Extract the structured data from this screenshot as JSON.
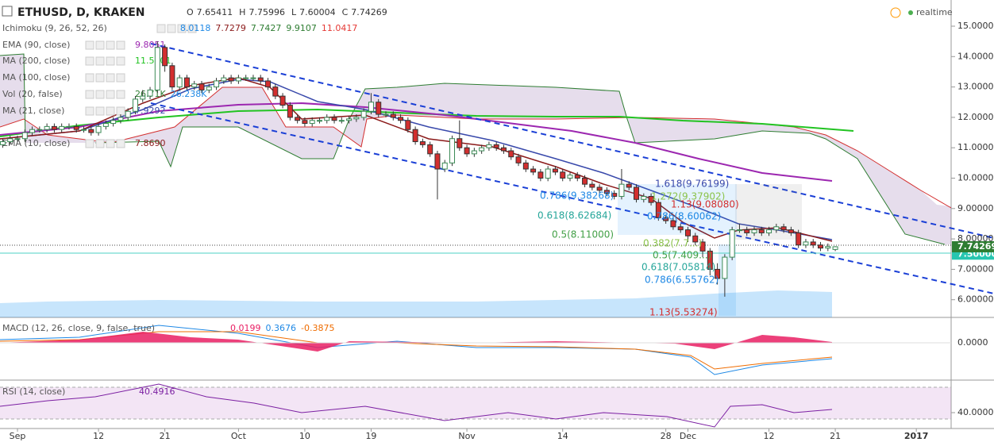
{
  "header": {
    "symbol": "ETHUSD, D, KRAKEN",
    "ohlc": [
      {
        "key": "O",
        "value": "7.65411"
      },
      {
        "key": "H",
        "value": "7.75996"
      },
      {
        "key": "L",
        "value": "7.60004"
      },
      {
        "key": "C",
        "value": "7.74269"
      }
    ],
    "status": "realtime"
  },
  "indicators": [
    {
      "name": "Ichimoku (9, 26, 52, 26)",
      "values": [
        {
          "text": "8.0118",
          "color": "#1e88e5"
        },
        {
          "text": "7.7279",
          "color": "#8b1a1a"
        },
        {
          "text": "7.7427",
          "color": "#2e7d32"
        },
        {
          "text": "9.9107",
          "color": "#2e7d32"
        },
        {
          "text": "11.0417",
          "color": "#e53935"
        }
      ]
    },
    {
      "name": "EMA (90, close)",
      "values": [
        {
          "text": "9.8051",
          "color": "#9c27b0"
        }
      ]
    },
    {
      "name": "MA (200, close)",
      "values": [
        {
          "text": "11.5401",
          "color": "#22c322"
        }
      ]
    },
    {
      "name": "MA (100, close)",
      "values": []
    },
    {
      "name": "Vol (20, false)",
      "values": [
        {
          "text": "26.71K",
          "color": "#2e7d32"
        },
        {
          "text": "26.238K",
          "color": "#1e88e5"
        }
      ]
    },
    {
      "name": "MA (21, close)",
      "values": [
        {
          "text": "7.9292",
          "color": "#3949ab"
        }
      ]
    },
    {
      "name": "EMA (10, close)",
      "values": [
        {
          "text": "7.8690",
          "color": "#8b1a1a"
        }
      ]
    }
  ],
  "candles": {
    "up_color": "#3a8a55",
    "down_color": "#d32f2f",
    "open": [
      11.1,
      11.2,
      11.3,
      11.3,
      11.5,
      11.6,
      11.6,
      11.7,
      11.6,
      11.7,
      11.7,
      11.6,
      11.6,
      11.5,
      11.7,
      11.8,
      11.9,
      12.0,
      12.2,
      12.6,
      12.7,
      12.9,
      14.3,
      13.7,
      13.0,
      13.3,
      13.0,
      13.1,
      12.9,
      13.0,
      13.2,
      13.3,
      13.2,
      13.3,
      13.3,
      13.3,
      13.2,
      13.0,
      12.7,
      12.4,
      12.0,
      11.9,
      11.8,
      11.9,
      11.9,
      12.0,
      11.9,
      11.9,
      11.95,
      12.0,
      12.2,
      12.5,
      12.1,
      12.1,
      12.0,
      11.9,
      11.6,
      11.2,
      11.1,
      10.8,
      10.3,
      10.5,
      11.3,
      11.0,
      10.8,
      10.9,
      11.0,
      11.1,
      11.0,
      10.9,
      10.7,
      10.5,
      10.3,
      10.2,
      10.0,
      10.3,
      10.2,
      10.0,
      10.1,
      10.0,
      9.8,
      9.7,
      9.6,
      9.5,
      9.4,
      9.8,
      9.7,
      9.3,
      9.4,
      9.2,
      8.7,
      8.6,
      8.4,
      8.3,
      8.1,
      7.9,
      7.6,
      7.0,
      6.7,
      7.4,
      8.3,
      8.3,
      8.2,
      8.3,
      8.2,
      8.3,
      8.4,
      8.3,
      8.2,
      7.8,
      7.9,
      7.8,
      7.7,
      7.65411
    ],
    "high": [
      11.3,
      11.4,
      11.4,
      11.6,
      11.7,
      11.7,
      11.8,
      11.8,
      11.8,
      11.8,
      11.8,
      11.7,
      11.7,
      11.8,
      11.9,
      12.0,
      12.1,
      12.3,
      12.7,
      12.9,
      13.0,
      14.5,
      14.4,
      13.8,
      13.4,
      13.4,
      13.2,
      13.2,
      13.1,
      13.3,
      13.4,
      13.4,
      13.4,
      13.4,
      13.4,
      13.4,
      13.3,
      13.1,
      12.8,
      12.5,
      12.1,
      12.0,
      12.0,
      12.0,
      12.1,
      12.1,
      12.0,
      12.05,
      12.1,
      12.3,
      12.8,
      12.6,
      12.2,
      12.2,
      12.1,
      12.0,
      11.7,
      11.3,
      11.2,
      10.9,
      10.6,
      11.4,
      11.9,
      11.1,
      11.0,
      11.1,
      11.2,
      11.2,
      11.1,
      11.0,
      10.8,
      10.6,
      10.4,
      10.3,
      10.4,
      10.4,
      10.3,
      10.2,
      10.2,
      10.1,
      9.9,
      9.8,
      9.7,
      9.6,
      10.3,
      9.9,
      9.8,
      9.5,
      9.5,
      9.3,
      8.8,
      8.7,
      8.5,
      8.4,
      8.2,
      8.0,
      7.7,
      7.2,
      7.5,
      8.4,
      8.5,
      8.4,
      8.4,
      8.4,
      8.4,
      8.5,
      8.5,
      8.4,
      8.3,
      8.0,
      8.0,
      7.9,
      7.85,
      7.75996
    ],
    "low": [
      11.0,
      11.1,
      11.2,
      11.2,
      11.4,
      11.5,
      11.5,
      11.5,
      11.5,
      11.6,
      11.5,
      11.5,
      11.4,
      11.4,
      11.6,
      11.7,
      11.8,
      11.9,
      12.1,
      12.5,
      12.6,
      12.8,
      13.5,
      12.9,
      12.9,
      12.9,
      12.9,
      12.8,
      12.8,
      12.9,
      13.1,
      13.1,
      13.1,
      13.2,
      13.2,
      13.1,
      12.9,
      12.6,
      12.3,
      11.9,
      11.8,
      11.7,
      11.7,
      11.8,
      11.8,
      11.8,
      11.8,
      11.8,
      11.85,
      11.9,
      12.1,
      12.0,
      12.0,
      11.9,
      11.8,
      11.5,
      11.1,
      11.0,
      10.7,
      9.3,
      10.2,
      10.4,
      10.9,
      10.7,
      10.7,
      10.8,
      10.9,
      10.9,
      10.8,
      10.6,
      10.4,
      10.2,
      10.1,
      9.9,
      9.9,
      10.1,
      9.9,
      9.9,
      9.9,
      9.7,
      9.6,
      9.5,
      9.4,
      9.3,
      9.3,
      9.6,
      9.2,
      9.2,
      9.1,
      8.6,
      8.5,
      8.3,
      8.2,
      7.9,
      7.8,
      7.4,
      6.8,
      6.5,
      6.1,
      7.3,
      8.2,
      8.1,
      8.1,
      8.1,
      8.1,
      8.2,
      8.2,
      8.1,
      7.7,
      7.7,
      7.7,
      7.6,
      7.6,
      7.60004
    ],
    "close": [
      11.2,
      11.3,
      11.3,
      11.5,
      11.6,
      11.6,
      11.7,
      11.6,
      11.7,
      11.7,
      11.6,
      11.6,
      11.5,
      11.7,
      11.8,
      11.9,
      12.0,
      12.2,
      12.6,
      12.7,
      12.9,
      14.3,
      13.7,
      13.0,
      13.3,
      13.0,
      13.1,
      12.9,
      13.0,
      13.2,
      13.3,
      13.2,
      13.3,
      13.3,
      13.3,
      13.2,
      13.0,
      12.7,
      12.4,
      12.0,
      11.9,
      11.8,
      11.9,
      11.9,
      12.0,
      11.9,
      11.9,
      11.95,
      12.0,
      12.2,
      12.5,
      12.1,
      12.1,
      12.0,
      11.9,
      11.6,
      11.2,
      11.1,
      10.8,
      10.3,
      10.5,
      11.3,
      11.0,
      10.8,
      10.9,
      11.0,
      11.1,
      11.0,
      10.9,
      10.7,
      10.5,
      10.3,
      10.2,
      10.0,
      10.3,
      10.2,
      10.0,
      10.1,
      10.0,
      9.8,
      9.7,
      9.6,
      9.5,
      9.4,
      9.8,
      9.7,
      9.3,
      9.4,
      9.2,
      8.7,
      8.6,
      8.4,
      8.3,
      8.1,
      7.9,
      7.6,
      7.0,
      6.7,
      7.4,
      8.3,
      8.3,
      8.2,
      8.3,
      8.2,
      8.3,
      8.4,
      8.3,
      8.2,
      7.8,
      7.9,
      7.8,
      7.7,
      7.75,
      7.74269
    ]
  },
  "price_axis": {
    "ticks": [
      {
        "value": 15,
        "label": "15.00000"
      },
      {
        "value": 14,
        "label": "14.00000"
      },
      {
        "value": 13,
        "label": "13.00000"
      },
      {
        "value": 12,
        "label": "12.00000"
      },
      {
        "value": 11,
        "label": "11.00000"
      },
      {
        "value": 10,
        "label": "10.00000"
      },
      {
        "value": 9,
        "label": "9.00000"
      },
      {
        "value": 8,
        "label": "8.00000"
      },
      {
        "value": 7,
        "label": "7.00000"
      },
      {
        "value": 6,
        "label": "6.00000"
      }
    ],
    "last_price": {
      "value": 7.74269,
      "label": "7.74269"
    },
    "level": {
      "value": 7.5,
      "label": "7.50000"
    }
  },
  "fibonacci": [
    {
      "label": "1.618(9.76199)",
      "color": "#3949ab"
    },
    {
      "label": "0.786(9.38268)",
      "color": "#1e88e5"
    },
    {
      "label": "1.272(9.37902)",
      "color": "#8bc34a"
    },
    {
      "label": "1.13(9.08080)",
      "color": "#d32f2f"
    },
    {
      "label": "0.618(8.62684)",
      "color": "#26a69a"
    },
    {
      "label": "0.786(8.60062)",
      "color": "#1e88e5"
    },
    {
      "label": "0.5(8.11000)",
      "color": "#43a047"
    },
    {
      "label": "0.382(7.7...)",
      "color": "#8bc34a"
    },
    {
      "label": "0.5(7.409...)",
      "color": "#43a047"
    },
    {
      "label": "0.618(7.05814)",
      "color": "#26a69a"
    },
    {
      "label": "0.786(6.55762)",
      "color": "#1e88e5"
    },
    {
      "label": "1.13(5.53274)",
      "color": "#d32f2f"
    }
  ],
  "macd": {
    "name": "MACD (12, 26, close, 9, false, true)",
    "values": [
      {
        "text": "0.0199",
        "color": "#e91e63"
      },
      {
        "text": "0.3676",
        "color": "#1e88e5"
      },
      {
        "text": "-0.3875",
        "color": "#ef6c00"
      }
    ],
    "tick": {
      "value": 0,
      "label": "0.0000"
    }
  },
  "rsi": {
    "name": "RSI (14, close)",
    "value": "40.4916",
    "tick": {
      "value": 40,
      "label": "40.0000"
    }
  },
  "x_axis": [
    {
      "label": "Sep",
      "candle": 2
    },
    {
      "label": "12",
      "candle": 13
    },
    {
      "label": "21",
      "candle": 22
    },
    {
      "label": "Oct",
      "candle": 32
    },
    {
      "label": "10",
      "candle": 41
    },
    {
      "label": "19",
      "candle": 50
    },
    {
      "label": "Nov",
      "candle": 63
    },
    {
      "label": "14",
      "candle": 76
    },
    {
      "label": "28",
      "candle": 90
    },
    {
      "label": "Dec",
      "candle": 93
    },
    {
      "label": "12",
      "candle": 104
    },
    {
      "label": "21",
      "candle": 113
    },
    {
      "label": "2017",
      "candle": 124
    }
  ]
}
